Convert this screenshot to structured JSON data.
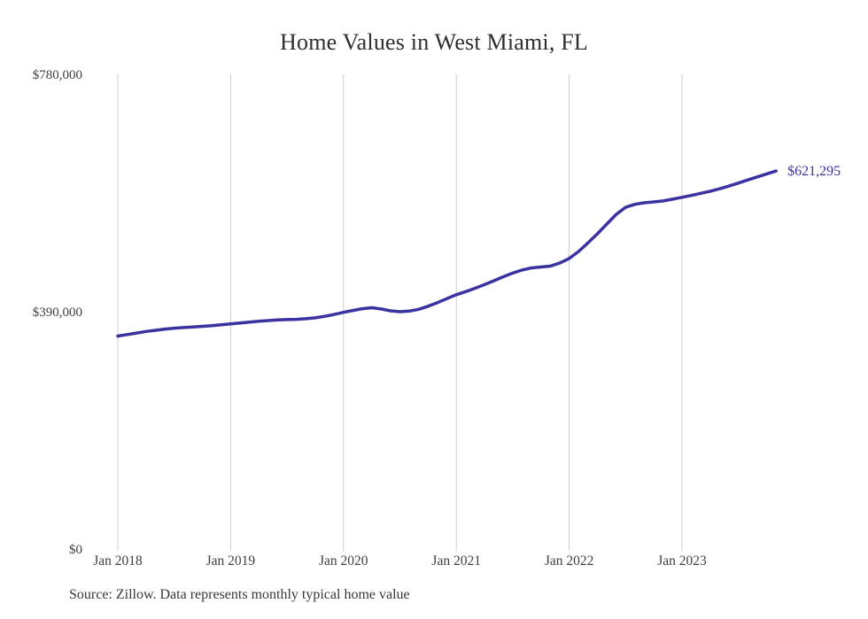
{
  "title": "Home Values in West Miami, FL",
  "source_note": "Source: Zillow. Data represents monthly typical home value",
  "colors": {
    "line": "#3b32a2",
    "grid": "#cccccc",
    "axis_text": "#3f3f3f",
    "title_text": "#2e2e2e",
    "annotation_text": "#3b32a2",
    "background": "#ffffff"
  },
  "chart_data": {
    "type": "line",
    "title": "Home Values in West Miami, FL",
    "xlabel": "",
    "ylabel": "",
    "ylim": [
      0,
      780000
    ],
    "grid": "vertical-only",
    "legend": "none",
    "x": [
      "Jan 2018",
      "Feb 2018",
      "Mar 2018",
      "Apr 2018",
      "May 2018",
      "Jun 2018",
      "Jul 2018",
      "Aug 2018",
      "Sep 2018",
      "Oct 2018",
      "Nov 2018",
      "Dec 2018",
      "Jan 2019",
      "Feb 2019",
      "Mar 2019",
      "Apr 2019",
      "May 2019",
      "Jun 2019",
      "Jul 2019",
      "Aug 2019",
      "Sep 2019",
      "Oct 2019",
      "Nov 2019",
      "Dec 2019",
      "Jan 2020",
      "Feb 2020",
      "Mar 2020",
      "Apr 2020",
      "May 2020",
      "Jun 2020",
      "Jul 2020",
      "Aug 2020",
      "Sep 2020",
      "Oct 2020",
      "Nov 2020",
      "Dec 2020",
      "Jan 2021",
      "Feb 2021",
      "Mar 2021",
      "Apr 2021",
      "May 2021",
      "Jun 2021",
      "Jul 2021",
      "Aug 2021",
      "Sep 2021",
      "Oct 2021",
      "Nov 2021",
      "Dec 2021",
      "Jan 2022",
      "Feb 2022",
      "Mar 2022",
      "Apr 2022",
      "May 2022",
      "Jun 2022",
      "Jul 2022",
      "Aug 2022",
      "Sep 2022",
      "Oct 2022",
      "Nov 2022",
      "Dec 2022",
      "Jan 2023",
      "Feb 2023",
      "Mar 2023",
      "Apr 2023",
      "May 2023",
      "Jun 2023",
      "Jul 2023",
      "Aug 2023",
      "Sep 2023",
      "Oct 2023",
      "Nov 2023"
    ],
    "values": [
      350000,
      352500,
      355000,
      357500,
      359500,
      361500,
      363000,
      364000,
      365000,
      366000,
      367000,
      368500,
      370000,
      371500,
      373000,
      374500,
      375500,
      376500,
      377000,
      377500,
      378500,
      380000,
      382500,
      385500,
      389000,
      392000,
      395000,
      396500,
      394500,
      391500,
      390000,
      391000,
      394000,
      399000,
      405000,
      411500,
      418000,
      423000,
      428500,
      434500,
      441000,
      447500,
      453500,
      458500,
      462000,
      463500,
      465000,
      470000,
      477500,
      489000,
      503000,
      518000,
      534000,
      550000,
      561500,
      566500,
      569000,
      570500,
      572000,
      575000,
      578000,
      581000,
      584500,
      588000,
      592000,
      596500,
      601500,
      606500,
      611500,
      616500,
      621295
    ],
    "x_tick_labels": [
      "Jan 2018",
      "Jan 2019",
      "Jan 2020",
      "Jan 2021",
      "Jan 2022",
      "Jan 2023"
    ],
    "x_tick_indices": [
      0,
      12,
      24,
      36,
      48,
      60
    ],
    "y_ticks": [
      {
        "value": 0,
        "label": "$0"
      },
      {
        "value": 390000,
        "label": "$390,000"
      },
      {
        "value": 780000,
        "label": "$780,000"
      }
    ],
    "annotation": {
      "text": "$621,295",
      "value": 621295,
      "position": "end-of-line"
    }
  }
}
